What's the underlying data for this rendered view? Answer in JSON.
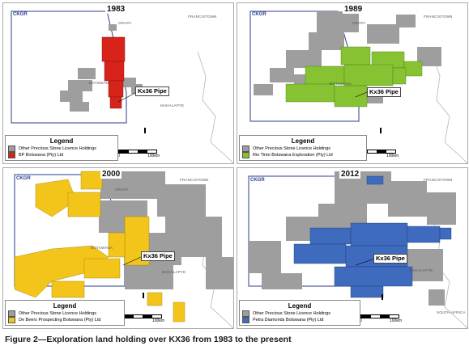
{
  "caption": "Figure 2—Exploration land holding over KX36 from 1983 to the present",
  "colors": {
    "other": "#9e9e9e",
    "bp": "#d8231a",
    "riotinto": "#86c232",
    "debeers": "#f3c51b",
    "petra": "#3e6bbd",
    "ckgr": "#2a3e8c"
  },
  "common": {
    "ckgr_label": "CKGR",
    "pipe_label": "Kx36 Pipe",
    "legend_title": "Legend",
    "other_holdings": "Other Precious Stone Licence Holdings",
    "scale_zero": "0",
    "scale_end": "100km",
    "place_francistown": "FRANCISTOWN",
    "place_orapa": "ORAPA",
    "place_botswana": "BOTSWANA",
    "place_mahalapye": "MAHALAPYE",
    "place_south_africa": "SOUTH AFRICA"
  },
  "panels": [
    {
      "year": "1983",
      "holder": "BP Botswana (Pty) Ltd",
      "color_key": "bp"
    },
    {
      "year": "1989",
      "holder": "Rio Tinto Botswana Exploration (Pty) Ltd",
      "color_key": "riotinto"
    },
    {
      "year": "2000",
      "holder": "De Beers Prospecting Botswana (Pty) Ltd",
      "color_key": "debeers"
    },
    {
      "year": "2012",
      "holder": "Petra Diamonds Botswana (Pty) Ltd",
      "color_key": "petra"
    }
  ]
}
